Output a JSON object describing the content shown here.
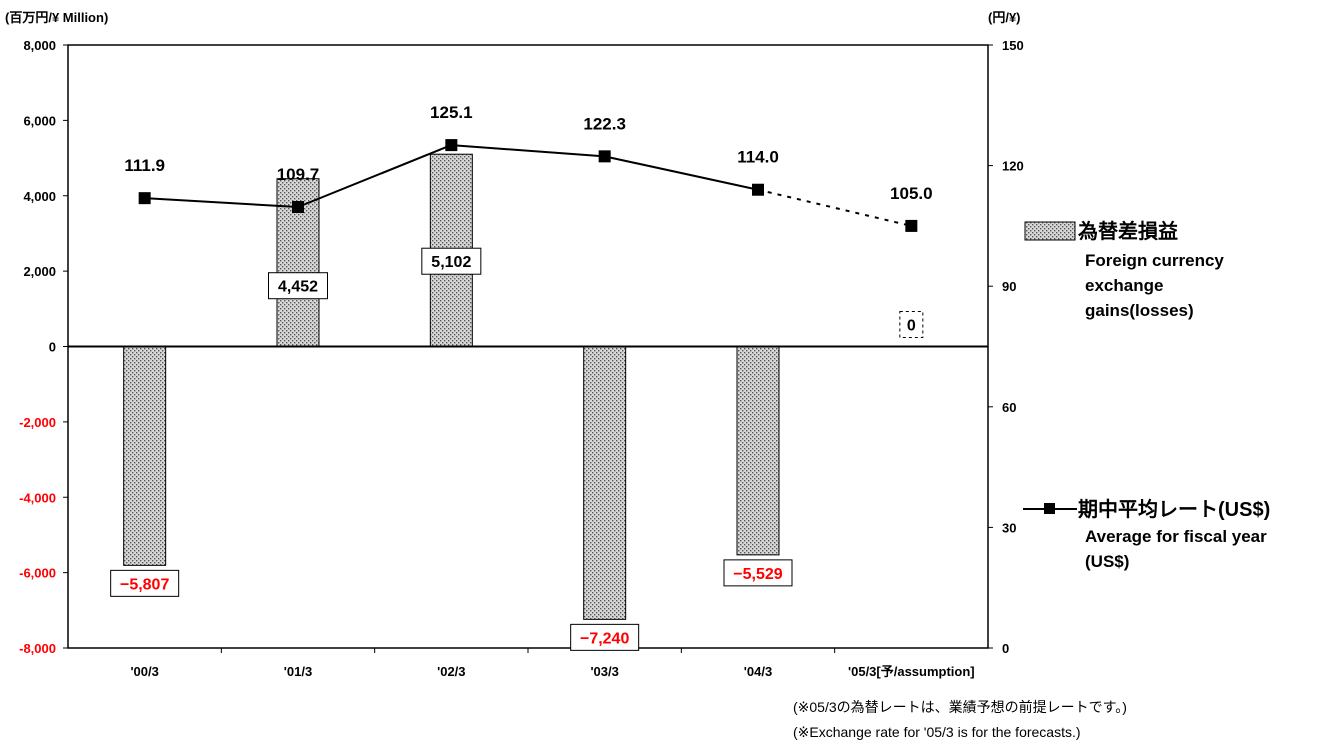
{
  "chart_data": {
    "type": "bar",
    "left_axis_unit": "(百万円/¥ Million)",
    "right_axis_unit": "(円/¥)",
    "categories": [
      "'00/3",
      "'01/3",
      "'02/3",
      "'03/3",
      "'04/3",
      "'05/3[予/assumption]"
    ],
    "bar_series": {
      "name_ja": "為替差損益",
      "name_en_lines": [
        "Foreign currency",
        "exchange",
        "gains(losses)"
      ],
      "values": [
        -5807,
        4452,
        5102,
        -7240,
        -5529,
        0
      ],
      "labels": [
        "−5,807",
        "4,452",
        "5,102",
        "−7,240",
        "−5,529",
        "0"
      ]
    },
    "line_series": {
      "name_ja": "期中平均レート(US$)",
      "name_en_lines": [
        "Average for fiscal year",
        "(US$)"
      ],
      "values": [
        111.9,
        109.7,
        125.1,
        122.3,
        114.0,
        105.0
      ],
      "labels": [
        "111.9",
        "109.7",
        "125.1",
        "122.3",
        "114.0",
        "105.0"
      ]
    },
    "y_left": {
      "min": -8000,
      "max": 8000,
      "ticks": [
        -8000,
        -6000,
        -4000,
        -2000,
        0,
        2000,
        4000,
        6000,
        8000
      ],
      "tick_labels": [
        "-8,000",
        "-6,000",
        "-4,000",
        "-2,000",
        "0",
        "2,000",
        "4,000",
        "6,000",
        "8,000"
      ]
    },
    "y_right": {
      "min": 0,
      "max": 150,
      "ticks": [
        0,
        30,
        60,
        90,
        120,
        150
      ],
      "tick_labels": [
        "0",
        "30",
        "60",
        "90",
        "120",
        "150"
      ]
    },
    "grid": false,
    "legend_position": "right",
    "colors": {
      "negative": "#ff0000",
      "text": "#000000",
      "bar_fill": "#d8d8d8",
      "bar_dot": "#555555"
    }
  },
  "notes": [
    "(※05/3の為替レートは、業績予想の前提レートです。)",
    "(※Exchange rate for '05/3 is for the forecasts.)"
  ]
}
